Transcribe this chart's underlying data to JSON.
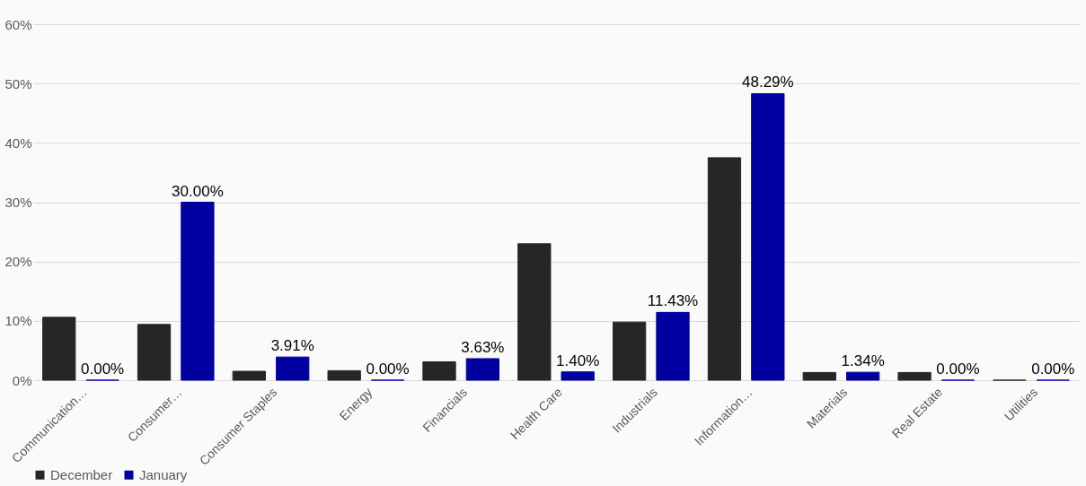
{
  "chart_data": {
    "type": "bar",
    "categories": [
      "Communication…",
      "Consumer…",
      "Consumer Staples",
      "Energy",
      "Financials",
      "Health Care",
      "Industrials",
      "Information…",
      "Materials",
      "Real Estate",
      "Utilities"
    ],
    "series": [
      {
        "name": "December",
        "color": "#262626",
        "values": [
          10.6,
          9.4,
          1.5,
          1.6,
          3.1,
          23.0,
          9.8,
          37.5,
          1.3,
          1.3,
          0
        ]
      },
      {
        "name": "January",
        "color": "#0000a0",
        "values": [
          0,
          30.0,
          3.91,
          0,
          3.63,
          1.4,
          11.43,
          48.29,
          1.34,
          0,
          0
        ],
        "value_labels": [
          "0.00%",
          "30.00%",
          "3.91%",
          "0.00%",
          "3.63%",
          "1.40%",
          "11.43%",
          "48.29%",
          "1.34%",
          "0.00%",
          "0.00%"
        ]
      }
    ],
    "ylim": [
      0,
      60
    ],
    "yticks": [
      {
        "value": 0,
        "label": "0%"
      },
      {
        "value": 10,
        "label": "10%"
      },
      {
        "value": 20,
        "label": "20%"
      },
      {
        "value": 30,
        "label": "30%"
      },
      {
        "value": 40,
        "label": "40%"
      },
      {
        "value": 50,
        "label": "50%"
      },
      {
        "value": 60,
        "label": "60%"
      }
    ],
    "grid": "y",
    "legend": "bottom"
  }
}
